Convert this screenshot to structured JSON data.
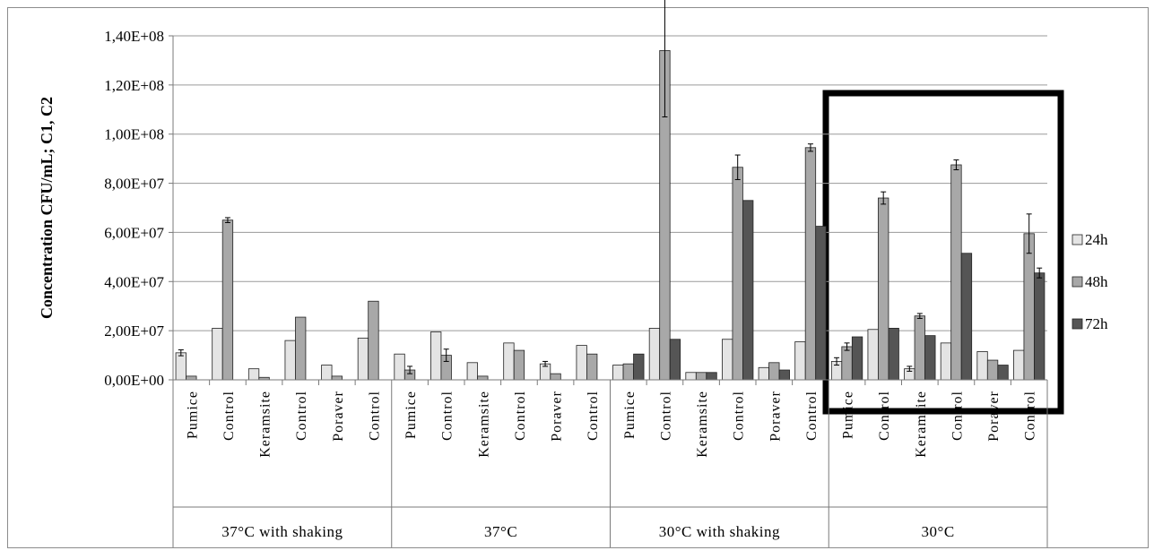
{
  "chart_data": {
    "type": "bar",
    "ylabel": "Concentration  CFU/mL;  C1, C2",
    "ylim": [
      0,
      140000000
    ],
    "ytick_values": [
      0,
      20000000,
      40000000,
      60000000,
      80000000,
      100000000,
      120000000,
      140000000
    ],
    "ytick_labels": [
      "0,00E+00",
      "2,00E+07",
      "4,00E+07",
      "6,00E+07",
      "8,00E+07",
      "1,00E+08",
      "1,20E+08",
      "1,40E+08"
    ],
    "grid": true,
    "legend_position": "right",
    "highlight_group": "30°C",
    "groups": [
      "37°C with shaking",
      "37°C",
      "30°C with shaking",
      "30°C"
    ],
    "categories": [
      "Pumice",
      "Control",
      "Keramsite",
      "Control",
      "Poraver",
      "Control"
    ],
    "series": [
      {
        "name": "24h",
        "color": "#e4e4e4",
        "values": [
          [
            11000000,
            21000000,
            4500000,
            16000000,
            6000000,
            17000000
          ],
          [
            10500000,
            19500000,
            7000000,
            15000000,
            6500000,
            14000000
          ],
          [
            6000000,
            21000000,
            3000000,
            16500000,
            5000000,
            15500000
          ],
          [
            7500000,
            20500000,
            4500000,
            15000000,
            11500000,
            12000000
          ]
        ],
        "errors": [
          [
            1200000,
            0,
            0,
            0,
            0,
            0
          ],
          [
            0,
            0,
            0,
            0,
            1000000,
            0
          ],
          [
            0,
            0,
            0,
            0,
            0,
            0
          ],
          [
            1500000,
            0,
            1000000,
            0,
            0,
            0
          ]
        ]
      },
      {
        "name": "48h",
        "color": "#a8a8a8",
        "values": [
          [
            1500000,
            65000000,
            1000000,
            25500000,
            1500000,
            32000000
          ],
          [
            4000000,
            10000000,
            1500000,
            12000000,
            2500000,
            10500000
          ],
          [
            6500000,
            134000000,
            3000000,
            86500000,
            7000000,
            94500000
          ],
          [
            13500000,
            74000000,
            26000000,
            87500000,
            8000000,
            59500000
          ]
        ],
        "errors": [
          [
            0,
            1000000,
            0,
            0,
            0,
            0
          ],
          [
            1500000,
            2500000,
            0,
            0,
            0,
            0
          ],
          [
            0,
            27000000,
            0,
            5000000,
            0,
            1500000
          ],
          [
            1500000,
            2500000,
            1000000,
            2000000,
            0,
            8000000
          ]
        ]
      },
      {
        "name": "72h",
        "color": "#555555",
        "values": [
          [
            0,
            0,
            0,
            0,
            0,
            0
          ],
          [
            0,
            0,
            0,
            0,
            0,
            0
          ],
          [
            10500000,
            16500000,
            3000000,
            73000000,
            4000000,
            62500000
          ],
          [
            17500000,
            21000000,
            18000000,
            51500000,
            6000000,
            43500000
          ]
        ],
        "errors": [
          [
            0,
            0,
            0,
            0,
            0,
            0
          ],
          [
            0,
            0,
            0,
            0,
            0,
            0
          ],
          [
            0,
            0,
            0,
            0,
            0,
            0
          ],
          [
            0,
            0,
            0,
            0,
            0,
            2000000
          ]
        ]
      }
    ]
  }
}
